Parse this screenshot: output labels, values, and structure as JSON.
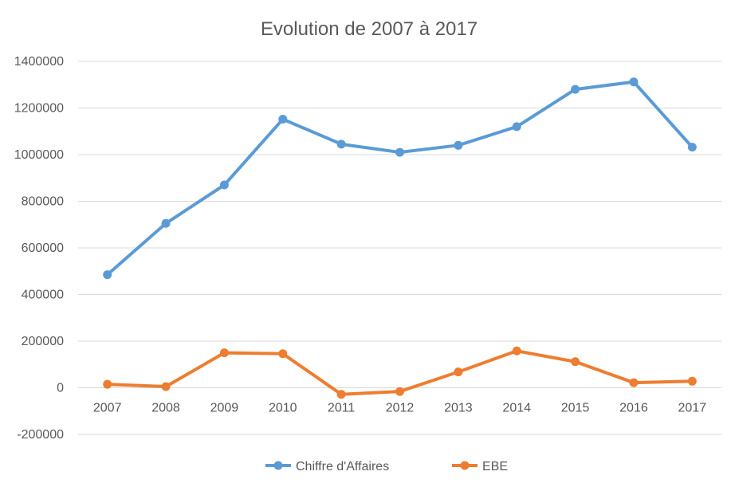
{
  "chart_data": {
    "type": "line",
    "title": "Evolution de 2007 à 2017",
    "xlabel": "",
    "ylabel": "",
    "categories": [
      "2007",
      "2008",
      "2009",
      "2010",
      "2011",
      "2012",
      "2013",
      "2014",
      "2015",
      "2016",
      "2017"
    ],
    "ylim": [
      -200000,
      1400000
    ],
    "yticks": [
      -200000,
      0,
      200000,
      400000,
      600000,
      800000,
      1000000,
      1200000,
      1400000
    ],
    "ytick_labels": [
      "-200000",
      "0",
      "200000",
      "400000",
      "600000",
      "800000",
      "1000000",
      "1200000",
      "1400000"
    ],
    "grid": true,
    "legend_position": "bottom",
    "series": [
      {
        "name": "Chiffre d'Affaires",
        "color": "#5B9BD5",
        "values": [
          485000,
          705000,
          870000,
          1152000,
          1045000,
          1010000,
          1040000,
          1120000,
          1280000,
          1312000,
          1032000
        ]
      },
      {
        "name": "EBE",
        "color": "#ED7D31",
        "values": [
          15000,
          5000,
          150000,
          146000,
          -28000,
          -16000,
          68000,
          158000,
          112000,
          22000,
          28000
        ]
      }
    ]
  }
}
